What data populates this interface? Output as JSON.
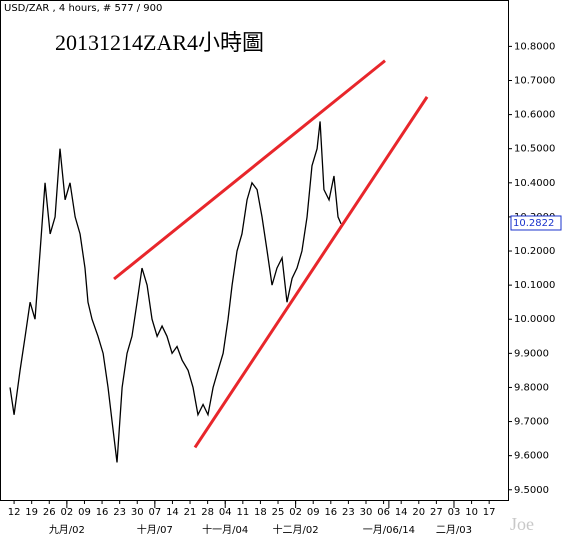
{
  "chart_data": {
    "type": "line",
    "title": "USD/ZAR , 4 hours, # 577 / 900",
    "annotation": "20131214ZAR4小時圖",
    "watermark": "Joe",
    "last_price": 10.2822,
    "x": [
      -0.23,
      0,
      0.34,
      0.63,
      0.91,
      1.19,
      1.48,
      1.76,
      2.05,
      2.33,
      2.61,
      2.9,
      3.18,
      3.47,
      3.75,
      4.03,
      4.2,
      4.43,
      4.77,
      5.06,
      5.34,
      5.57,
      5.85,
      6.14,
      6.42,
      6.7,
      6.99,
      7.27,
      7.56,
      7.84,
      8.13,
      8.41,
      8.69,
      8.98,
      9.26,
      9.55,
      9.89,
      10.17,
      10.45,
      10.74,
      11.02,
      11.31,
      11.59,
      11.88,
      12.16,
      12.39,
      12.67,
      12.95,
      13.24,
      13.52,
      13.81,
      14.09,
      14.38,
      14.66,
      14.94,
      15.23,
      15.51,
      15.8,
      16.08,
      16.36,
      16.65,
      16.93,
      17.22,
      17.39,
      17.61,
      17.9,
      18.18,
      18.41,
      18.58
    ],
    "series": [
      {
        "name": "USD/ZAR",
        "color": "#000000",
        "values": [
          9.8,
          9.72,
          9.85,
          9.95,
          10.05,
          10.0,
          10.2,
          10.4,
          10.25,
          10.3,
          10.5,
          10.35,
          10.4,
          10.3,
          10.25,
          10.15,
          10.05,
          10.0,
          9.95,
          9.9,
          9.8,
          9.7,
          9.58,
          9.8,
          9.9,
          9.95,
          10.05,
          10.15,
          10.1,
          10.0,
          9.95,
          9.98,
          9.95,
          9.9,
          9.92,
          9.88,
          9.85,
          9.8,
          9.72,
          9.75,
          9.72,
          9.8,
          9.85,
          9.9,
          10.0,
          10.1,
          10.2,
          10.25,
          10.35,
          10.4,
          10.38,
          10.3,
          10.2,
          10.1,
          10.15,
          10.18,
          10.05,
          10.12,
          10.15,
          10.2,
          10.3,
          10.45,
          10.5,
          10.58,
          10.38,
          10.35,
          10.42,
          10.3,
          10.28
        ]
      }
    ],
    "trendlines": [
      {
        "color": "#e8262b",
        "x": [
          5.68,
          21.08
        ],
        "y": [
          10.118,
          10.758
        ]
      },
      {
        "color": "#e8262b",
        "x": [
          10.28,
          23.47
        ],
        "y": [
          9.624,
          10.652
        ]
      }
    ],
    "xlim": [
      -0.8,
      28.07
    ],
    "ylim": [
      9.47,
      10.936
    ],
    "yticks": [
      {
        "value": 9.5,
        "label": "9.5000"
      },
      {
        "value": 9.6,
        "label": "9.6000"
      },
      {
        "value": 9.7,
        "label": "9.7000"
      },
      {
        "value": 9.8,
        "label": "9.8000"
      },
      {
        "value": 9.9,
        "label": "9.9000"
      },
      {
        "value": 10.0,
        "label": "10.0000"
      },
      {
        "value": 10.1,
        "label": "10.1000"
      },
      {
        "value": 10.2,
        "label": "10.2000"
      },
      {
        "value": 10.3,
        "label": "10.3000"
      },
      {
        "value": 10.4,
        "label": "10.4000"
      },
      {
        "value": 10.5,
        "label": "10.5000"
      },
      {
        "value": 10.6,
        "label": "10.6000"
      },
      {
        "value": 10.7,
        "label": "10.7000"
      },
      {
        "value": 10.8,
        "label": "10.8000"
      }
    ],
    "xticks": [
      {
        "value": 0,
        "label": "12"
      },
      {
        "value": 1,
        "label": "19"
      },
      {
        "value": 2,
        "label": "26"
      },
      {
        "value": 3,
        "label": "02"
      },
      {
        "value": 4,
        "label": "09"
      },
      {
        "value": 5,
        "label": "16"
      },
      {
        "value": 6,
        "label": "23"
      },
      {
        "value": 7,
        "label": "30"
      },
      {
        "value": 8,
        "label": "07"
      },
      {
        "value": 9,
        "label": "14"
      },
      {
        "value": 10,
        "label": "21"
      },
      {
        "value": 11,
        "label": "28"
      },
      {
        "value": 12,
        "label": "04"
      },
      {
        "value": 13,
        "label": "11"
      },
      {
        "value": 14,
        "label": "18"
      },
      {
        "value": 15,
        "label": "25"
      },
      {
        "value": 16,
        "label": "02"
      },
      {
        "value": 17,
        "label": "09"
      },
      {
        "value": 18,
        "label": "16"
      },
      {
        "value": 19,
        "label": "23"
      },
      {
        "value": 20,
        "label": "30"
      },
      {
        "value": 21,
        "label": "06"
      },
      {
        "value": 22,
        "label": "14"
      },
      {
        "value": 23,
        "label": "20"
      },
      {
        "value": 24,
        "label": "27"
      },
      {
        "value": 25,
        "label": "03"
      },
      {
        "value": 26,
        "label": "10"
      },
      {
        "value": 27,
        "label": "17"
      }
    ],
    "month_labels": [
      {
        "value": 3,
        "label": "九月/02"
      },
      {
        "value": 8,
        "label": "十月/07"
      },
      {
        "value": 12,
        "label": "十一月/04"
      },
      {
        "value": 16,
        "label": "十二月/02"
      },
      {
        "value": 21.3,
        "label": "一月/06/14"
      },
      {
        "value": 25,
        "label": "二月/03"
      }
    ]
  }
}
